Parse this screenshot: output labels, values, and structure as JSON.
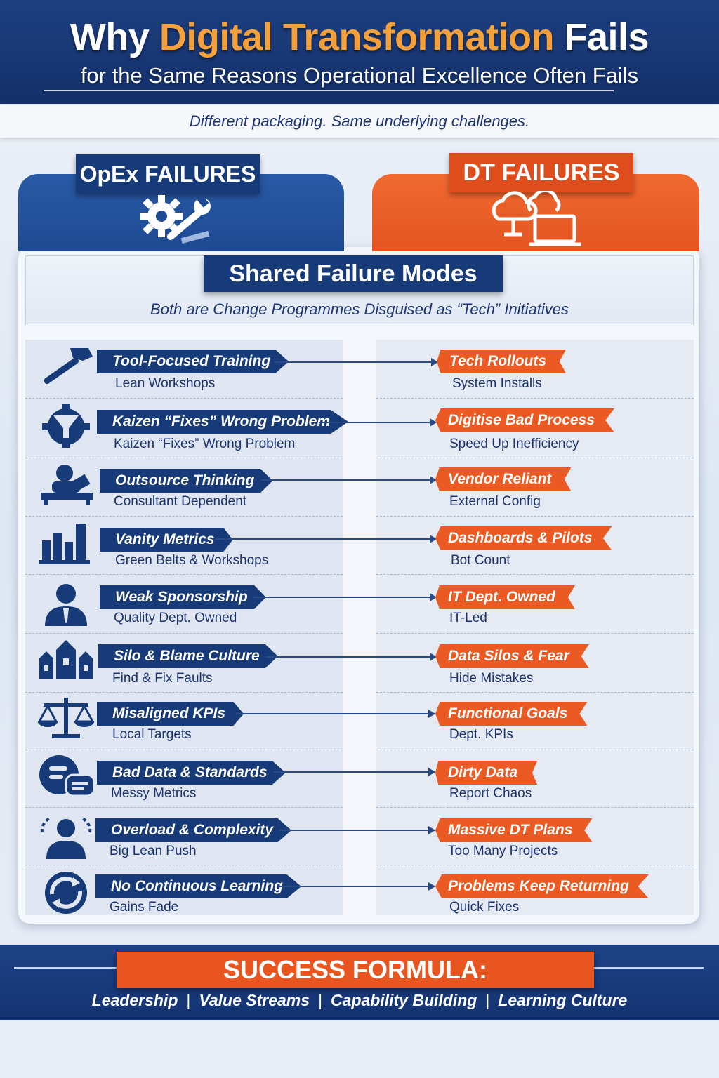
{
  "header": {
    "title_part1": "Why",
    "title_accent": "Digital Transformation",
    "title_part2": "Fails",
    "subtitle": "for the Same Reasons Operational Excellence Often Fails",
    "tagline": "Different packaging. Same underlying challenges."
  },
  "categories": {
    "left": {
      "label": "OpEx FAILURES",
      "icon": "gear-wrench-icon"
    },
    "right": {
      "label": "DT FAILURES",
      "icon": "cloud-computer-icon"
    }
  },
  "shared": {
    "title": "Shared Failure Modes",
    "subtitle": "Both are Change Programmes Disguised as “Tech” Initiatives"
  },
  "rows": [
    {
      "icon": "hammer-icon",
      "left_title": "Tool-Focused Training",
      "left_sub": "Lean Workshops",
      "right_title": "Tech Rollouts",
      "right_sub": "System Installs"
    },
    {
      "icon": "gear-funnel-icon",
      "left_title": "Kaizen “Fixes” Wrong Problem",
      "left_sub": "Kaizen “Fixes” Wrong Problem",
      "right_title": "Digitise Bad Process",
      "right_sub": "Speed Up Inefficiency"
    },
    {
      "icon": "consultant-desk-icon",
      "left_title": "Outsource Thinking",
      "left_sub": "Consultant Dependent",
      "right_title": "Vendor Reliant",
      "right_sub": "External Config"
    },
    {
      "icon": "bar-chart-icon",
      "left_title": "Vanity Metrics",
      "left_sub": "Green Belts & Workshops",
      "right_title": "Dashboards & Pilots",
      "right_sub": "Bot Count"
    },
    {
      "icon": "manager-icon",
      "left_title": "Weak Sponsorship",
      "left_sub": "Quality Dept. Owned",
      "right_title": "IT Dept. Owned",
      "right_sub": "IT-Led"
    },
    {
      "icon": "silo-buildings-icon",
      "left_title": "Silo & Blame Culture",
      "left_sub": "Find & Fix Faults",
      "right_title": "Data Silos & Fear",
      "right_sub": "Hide Mistakes"
    },
    {
      "icon": "balance-scale-icon",
      "left_title": "Misaligned KPIs",
      "left_sub": "Local Targets",
      "right_title": "Functional Goals",
      "right_sub": "Dept. KPIs"
    },
    {
      "icon": "data-chat-icon",
      "left_title": "Bad Data & Standards",
      "left_sub": "Messy Metrics",
      "right_title": "Dirty Data",
      "right_sub": "Report Chaos"
    },
    {
      "icon": "overloaded-person-icon",
      "left_title": "Overload & Complexity",
      "left_sub": "Big Lean Push",
      "right_title": "Massive DT Plans",
      "right_sub": "Too Many Projects"
    },
    {
      "icon": "cycle-icon",
      "left_title": "No Continuous Learning",
      "left_sub": "Gains Fade",
      "right_title": "Problems Keep Returning",
      "right_sub": "Quick Fixes"
    }
  ],
  "footer": {
    "title": "SUCCESS FORMULA:",
    "items": [
      "Leadership",
      "Value Streams",
      "Capability Building",
      "Learning Culture"
    ],
    "separator": "|"
  },
  "colors": {
    "navy": "#173b78",
    "blue_panel": "#1d4a92",
    "orange": "#ea5a22",
    "accent_title": "#f6a03a"
  }
}
